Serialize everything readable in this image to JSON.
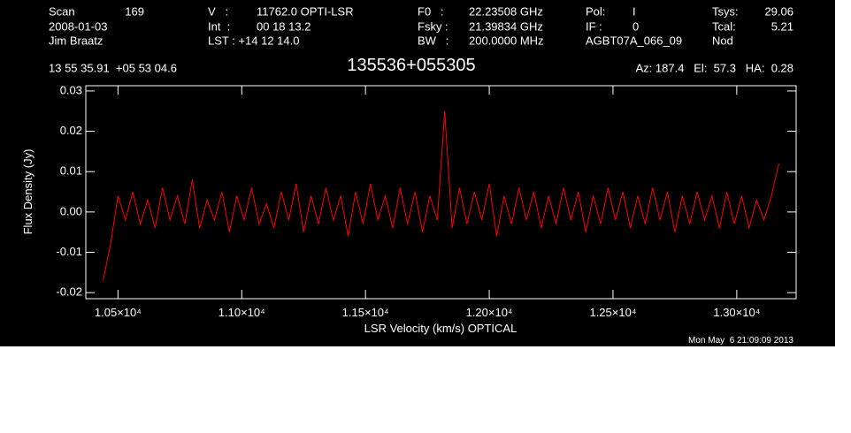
{
  "chart_data": {
    "type": "line",
    "title": "135536+055305",
    "header": [
      "Scan",
      "169",
      "2008-01-03",
      "Jim Braatz",
      "V   :",
      "11762.0 OPTI-LSR",
      "Int  :",
      "00 18 13.2",
      "LST : +14 12 14.0",
      "F0   :",
      "22.23508 GHz",
      "Fsky :",
      "21.39834 GHz",
      "BW   :",
      "200.0000 MHz",
      "Pol:",
      "I",
      "IF :",
      "0",
      "AGBT07A_066_09",
      "Tsys:",
      "29.06",
      "Tcal:",
      "5.21",
      "Nod",
      "13 55 35.91  +05 53 04.6",
      "Az: 187.4   El:  57.3   HA:  0.28"
    ],
    "timestamp": "Mon May  6 21:09:09 2013",
    "xlabel": "LSR Velocity (km/s) OPTICAL",
    "ylabel": "Flux Density (Jy)",
    "xlim": [
      10370,
      13240
    ],
    "ylim": [
      -0.0215,
      0.0313
    ],
    "xticks": [
      {
        "value": 10500,
        "label": "1.05×10⁴"
      },
      {
        "value": 11000,
        "label": "1.10×10⁴"
      },
      {
        "value": 11500,
        "label": "1.15×10⁴"
      },
      {
        "value": 12000,
        "label": "1.20×10⁴"
      },
      {
        "value": 12500,
        "label": "1.25×10⁴"
      },
      {
        "value": 13000,
        "label": "1.30×10⁴"
      }
    ],
    "yticks": [
      0.03,
      0.02,
      0.01,
      {
        "value": 0,
        "label": "0.00"
      },
      -0.01,
      -0.02
    ],
    "series": [
      {
        "color": "#ff0000",
        "x": [
          10440,
          10470,
          10500,
          10530,
          10560,
          10590,
          10620,
          10650,
          10680,
          10710,
          10740,
          10770,
          10800,
          10830,
          10860,
          10890,
          10920,
          10950,
          10980,
          11010,
          11040,
          11070,
          11100,
          11130,
          11160,
          11190,
          11220,
          11250,
          11280,
          11310,
          11340,
          11370,
          11400,
          11430,
          11460,
          11490,
          11520,
          11550,
          11580,
          11610,
          11640,
          11670,
          11700,
          11730,
          11760,
          11790,
          11820,
          11850,
          11880,
          11910,
          11940,
          11970,
          12000,
          12030,
          12060,
          12090,
          12120,
          12150,
          12180,
          12210,
          12240,
          12270,
          12300,
          12330,
          12360,
          12390,
          12420,
          12450,
          12480,
          12510,
          12540,
          12570,
          12600,
          12630,
          12660,
          12690,
          12720,
          12750,
          12780,
          12810,
          12840,
          12870,
          12900,
          12930,
          12960,
          12990,
          13020,
          13050,
          13080,
          13110,
          13140,
          13170
        ],
        "values": [
          -0.017,
          -0.008,
          0.004,
          -0.002,
          0.005,
          -0.003,
          0.003,
          -0.004,
          0.006,
          -0.002,
          0.004,
          -0.003,
          0.008,
          -0.004,
          0.003,
          -0.002,
          0.005,
          -0.005,
          0.004,
          -0.002,
          0.006,
          -0.003,
          0.002,
          -0.004,
          0.005,
          -0.002,
          0.007,
          -0.005,
          0.004,
          -0.003,
          0.006,
          -0.002,
          0.004,
          -0.006,
          0.005,
          -0.003,
          0.007,
          -0.002,
          0.004,
          -0.004,
          0.006,
          -0.003,
          0.005,
          -0.005,
          0.004,
          -0.002,
          0.025,
          -0.004,
          0.006,
          -0.003,
          0.005,
          -0.002,
          0.007,
          -0.006,
          0.004,
          -0.003,
          0.006,
          -0.002,
          0.005,
          -0.004,
          0.004,
          -0.003,
          0.006,
          -0.002,
          0.005,
          -0.005,
          0.004,
          -0.003,
          0.006,
          -0.002,
          0.005,
          -0.004,
          0.004,
          -0.003,
          0.006,
          -0.002,
          0.005,
          -0.005,
          0.004,
          -0.003,
          0.005,
          -0.002,
          0.004,
          -0.004,
          0.005,
          -0.003,
          0.004,
          -0.004,
          0.003,
          -0.002,
          0.004,
          0.012
        ]
      }
    ]
  }
}
